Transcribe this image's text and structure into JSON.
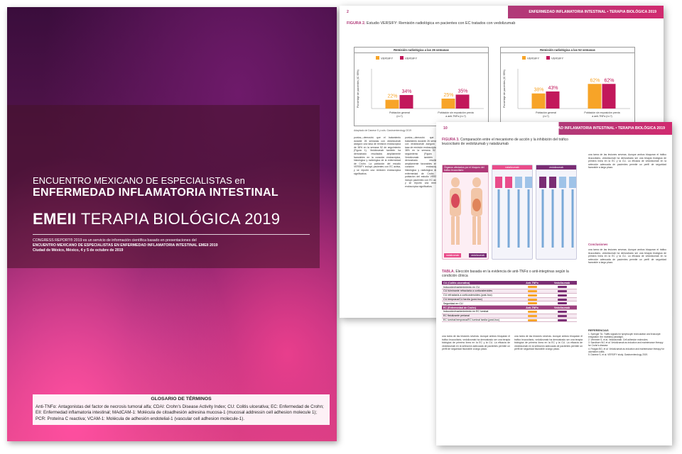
{
  "cover": {
    "meeting_line1": "ENCUENTRO MEXICANO DE ESPECIALISTAS en",
    "meeting_line2": "ENFERMEDAD INFLAMATORIA INTESTINAL",
    "emeii_bold": "EMEII",
    "emeii_rest": "TERAPIA BIOLÓGICA 2019",
    "sub_line1": "CONGRESS REPORT® 2019 es un servicio de información científica basado en presentaciones del",
    "sub_line2": "ENCUENTRO MEXICANO DE ESPECIALISTAS EN ENFERMEDAD INFLAMATORIA INTESTINAL EMEII 2019",
    "sub_line3": "Ciudad de México, México, 4 y 5 de octubre de 2019",
    "glossary_title": "GLOSARIO DE TÉRMINOS",
    "glossary_text": "Anti-TNFα: Antagonistas del factor de necrosis tumoral alfa; CDAI: Crohn's Disease Activity Index; CU: Colitis ulcerativa; EC: Enfermedad de Crohn; EII: Enfermedad inflamatoria intestinal; MAdCAM-1: Molécula de citoadhesión adresina mucosa-1 (mucosal addressin cell adhesion molecule 1); PCR: Proteína C reactiva; VCAM-1: Molécula de adhesión endotelial-1 (vascular cell adhesion molecule-1)."
  },
  "page2": {
    "page_number": "2",
    "header_title": "ENFERMEDAD INFLAMATORIA INTESTINAL • TERAPIA BIOLÓGICA 2019",
    "figure_label": "FIGURA 2.",
    "figure_title": "Estudio VERSIFY: Remisión radiológica en pacientes con EC tratados con vedolizumab",
    "source": "Adaptado de Danese S y cols. Gastroenterology 2019",
    "body_text": "puntos—demostró que el tratamiento durante 26 semanas con vedolizumab aseguró una tasa de remisión endoscópica de 38% en la semana 52 de seguimiento (Figura 1). Vedolizumab también ha demostrado resultados ampliamente favorables en la curación endoscópica, histológica y radiológica de la enfermedad de Crohn. La población del estudio VERSIFY incluyó pacientes con EC activa, y se reportó una remisión endoscópica significativa."
  },
  "chart_data": [
    {
      "type": "bar",
      "title": "Remisión radiológica a las 26 semanas",
      "ylabel": "Porcentaje de pacientes (IC 95%)",
      "ylim": [
        0,
        100
      ],
      "categories": [
        "Población general (n=?)",
        "Población sin exposición previa a anti-TNFα (n=?)"
      ],
      "series": [
        {
          "name": "VERSIFY",
          "color": "#f7a428",
          "values": [
            22,
            25
          ]
        },
        {
          "name": "VERSIFY",
          "color": "#c2185b",
          "values": [
            34,
            35
          ]
        }
      ],
      "data_labels": [
        [
          "22%",
          "34%"
        ],
        [
          "25%",
          "35%"
        ]
      ]
    },
    {
      "type": "bar",
      "title": "Remisión radiológica a las 52 semanas",
      "ylabel": "Porcentaje de pacientes (IC 95%)",
      "ylim": [
        0,
        100
      ],
      "categories": [
        "Población general (n=?)",
        "Población sin exposición previa a anti-TNFα (n=?)"
      ],
      "series": [
        {
          "name": "VERSIFY",
          "color": "#f7a428",
          "values": [
            38,
            62
          ]
        },
        {
          "name": "VERSIFY",
          "color": "#c2185b",
          "values": [
            43,
            62
          ]
        }
      ],
      "data_labels": [
        [
          "38%",
          "43%"
        ],
        [
          "62%",
          "62%"
        ]
      ]
    }
  ],
  "page3": {
    "page_number": "10",
    "header_title": "ENFERMEDAD INFLAMATORIA INTESTINAL • TERAPIA BIOLÓGICA 2019",
    "figure_label": "FIGURA 3.",
    "figure_title": "Comparación entre el mecanismo de acción y la inhibición del tráfico leucocitario de vedolizumab y natalizumab",
    "mech_organs_label": "Órganos afectados por el bloqueo del tráfico leucocitario",
    "mech_col1": "natalizumab",
    "mech_col2": "vedolizumab",
    "mech_tag1": "natalizumab",
    "mech_tag2": "vedolizumab",
    "table_label": "TABLA.",
    "table_title": "Elección basada en la evidencia de anti-TNFα o anti-integrinas según la condición clínica",
    "table_sections": [
      {
        "header": "CU (Colitis ulcerativa)",
        "col_a": "Anti-TNFα",
        "col_b": "Vedolizumab",
        "rows": [
          "Inducción/mantenimiento en CU",
          "CU fulminante refractaria a corticosteroides",
          "CU refractaria a corticosteroides (post-hoc)",
          "CU temprana/CU tardía (post-hoc)",
          "Seguridad en CU"
        ]
      },
      {
        "header": "EC (Enfermedad de Crohn)",
        "col_a": "Anti-TNFα",
        "col_b": "Vedolizumab",
        "rows": [
          "Inducción/mantenimiento en EC luminal",
          "EC fistulizante perianal",
          "EC luminal temprana/EC luminal tardía (post-hoc)"
        ]
      }
    ],
    "conclusions_title": "Conclusiones",
    "refs_title": "REFERENCIAS",
    "refs": [
      "1. Springer TA. Traffic signals for lymphocyte recirculation and leukocyte emigration: the multistep paradigm.",
      "2. Vermeire S, et al. Vedolizumab. Cell adhesion molecules.",
      "3. Sandborn WJ, et al. Vedolizumab as induction and maintenance therapy for Crohn's disease.",
      "4. Feagan BG, et al. Vedolizumab as induction and maintenance therapy for ulcerative colitis.",
      "5. Danese S, et al. VERSIFY study. Gastroenterology 2019."
    ],
    "body_text": "una tarea de las lesiones severas. Aunque ambos bloquean el tráfico leucocitario, vedolizumab ha demostrado ser una terapia biológica de primera línea en la EC y la CU. La eficacia de vedolizumab en la selección adecuada de pacientes permite un perfil de seguridad favorable a largo plazo."
  },
  "colors": {
    "orange": "#f7a428",
    "magenta": "#c2185b",
    "purple": "#7a2d74",
    "accent": "#b03a78"
  }
}
